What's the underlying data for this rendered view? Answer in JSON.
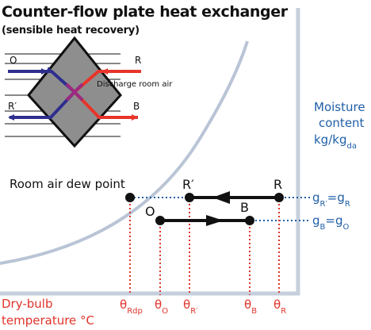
{
  "title": "Counter-flow plate heat exchanger",
  "subtitle": "(sensible heat recovery)",
  "exchanger": {
    "label_O": "O",
    "label_R": "R",
    "label_Rprime": "R′",
    "label_B": "B",
    "discharge_label": "Discharge room air"
  },
  "chart": {
    "y_axis_label": [
      "Moisture",
      "content",
      "kg/kg",
      "da"
    ],
    "x_axis_label": [
      "Dry-bulb",
      "temperature °C"
    ],
    "dew_point_label": "Room air dew point",
    "points": {
      "R": "R",
      "Rprime": "R′",
      "O": "O",
      "B": "B"
    },
    "moisture_labels": {
      "top": {
        "g1": "g",
        "s1": "R′",
        "eq": "=g",
        "s2": "R"
      },
      "bottom": {
        "g1": "g",
        "s1": "B",
        "eq": "=g",
        "s2": "O"
      }
    },
    "temperatures": [
      {
        "sym": "θ",
        "sub": "Rdp"
      },
      {
        "sym": "θ",
        "sub": "O"
      },
      {
        "sym": "θ",
        "sub": "R′"
      },
      {
        "sym": "θ",
        "sub": "B"
      },
      {
        "sym": "θ",
        "sub": "R"
      }
    ]
  },
  "colors": {
    "outdoor_stream": "#2e2e8f",
    "room_stream": "#e8342a",
    "mix": "#9b2a7f",
    "saturation_curve": "#b9c4d6",
    "moisture_text": "#1f5fa8",
    "temperature_text": "#e0342a"
  }
}
